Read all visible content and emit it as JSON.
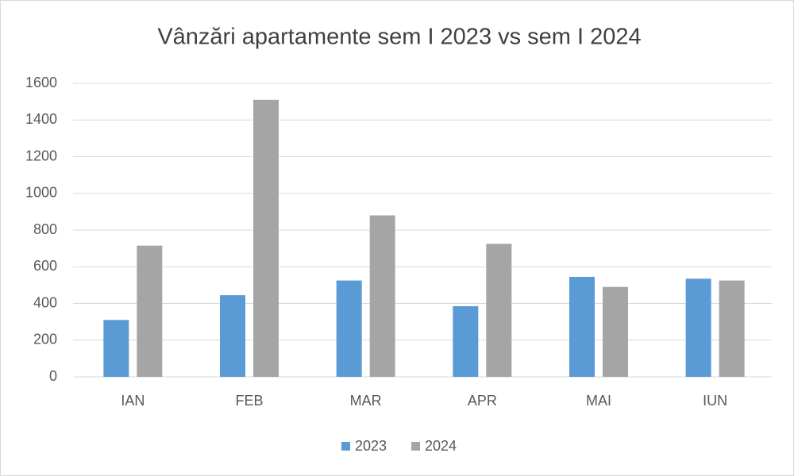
{
  "chart_data": {
    "type": "bar",
    "title": "Vânzări apartamente sem I 2023 vs sem I 2024",
    "categories": [
      "IAN",
      "FEB",
      "MAR",
      "APR",
      "MAI",
      "IUN"
    ],
    "series": [
      {
        "name": "2023",
        "color": "#5b9bd5",
        "values": [
          310,
          445,
          525,
          385,
          545,
          535
        ]
      },
      {
        "name": "2024",
        "color": "#a5a5a5",
        "values": [
          715,
          1510,
          880,
          725,
          490,
          525
        ]
      }
    ],
    "ylim": [
      0,
      1600
    ],
    "yticks": [
      0,
      200,
      400,
      600,
      800,
      1000,
      1200,
      1400,
      1600
    ],
    "grid": true,
    "legend": "bottom"
  }
}
